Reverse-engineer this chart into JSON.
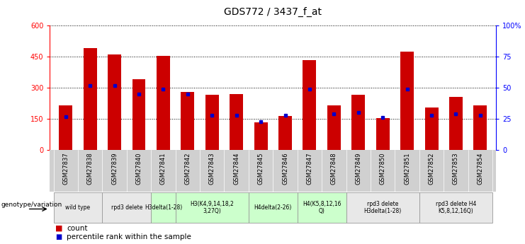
{
  "title": "GDS772 / 3437_f_at",
  "samples": [
    "GSM27837",
    "GSM27838",
    "GSM27839",
    "GSM27840",
    "GSM27841",
    "GSM27842",
    "GSM27843",
    "GSM27844",
    "GSM27845",
    "GSM27846",
    "GSM27847",
    "GSM27848",
    "GSM27849",
    "GSM27850",
    "GSM27851",
    "GSM27852",
    "GSM27853",
    "GSM27854"
  ],
  "counts": [
    215,
    490,
    460,
    340,
    455,
    280,
    265,
    270,
    135,
    165,
    435,
    215,
    265,
    155,
    475,
    205,
    255,
    215
  ],
  "percentile_ranks": [
    27,
    52,
    52,
    45,
    49,
    45,
    28,
    28,
    23,
    28,
    49,
    29,
    30,
    26,
    49,
    28,
    29,
    28
  ],
  "bar_color": "#cc0000",
  "dot_color": "#0000cc",
  "ylim_left": [
    0,
    600
  ],
  "ylim_right": [
    0,
    100
  ],
  "yticks_left": [
    0,
    150,
    300,
    450,
    600
  ],
  "yticks_right": [
    0,
    25,
    50,
    75,
    100
  ],
  "ytick_labels_right": [
    "0",
    "25",
    "50",
    "75",
    "100%"
  ],
  "groups": [
    {
      "label": "wild type",
      "samples": [
        "GSM27837",
        "GSM27838"
      ],
      "color": "#e8e8e8"
    },
    {
      "label": "rpd3 delete",
      "samples": [
        "GSM27839",
        "GSM27840"
      ],
      "color": "#e8e8e8"
    },
    {
      "label": "H3delta(1-28)",
      "samples": [
        "GSM27841"
      ],
      "color": "#ccffcc"
    },
    {
      "label": "H3(K4,9,14,18,2\n3,27Q)",
      "samples": [
        "GSM27842",
        "GSM27843",
        "GSM27844"
      ],
      "color": "#ccffcc"
    },
    {
      "label": "H4delta(2-26)",
      "samples": [
        "GSM27845",
        "GSM27846"
      ],
      "color": "#ccffcc"
    },
    {
      "label": "H4(K5,8,12,16\nQ)",
      "samples": [
        "GSM27847",
        "GSM27848"
      ],
      "color": "#ccffcc"
    },
    {
      "label": "rpd3 delete\nH3delta(1-28)",
      "samples": [
        "GSM27849",
        "GSM27850",
        "GSM27851"
      ],
      "color": "#e8e8e8"
    },
    {
      "label": "rpd3 delete H4\nK5,8,12,16Q)",
      "samples": [
        "GSM27852",
        "GSM27853",
        "GSM27854"
      ],
      "color": "#e8e8e8"
    }
  ],
  "legend_label_count": "count",
  "legend_label_pct": "percentile rank within the sample",
  "genotype_label": "genotype/variation",
  "title_fontsize": 10,
  "tick_fontsize": 7,
  "sample_fontsize": 6,
  "group_fontsize": 5.5,
  "legend_fontsize": 7.5
}
